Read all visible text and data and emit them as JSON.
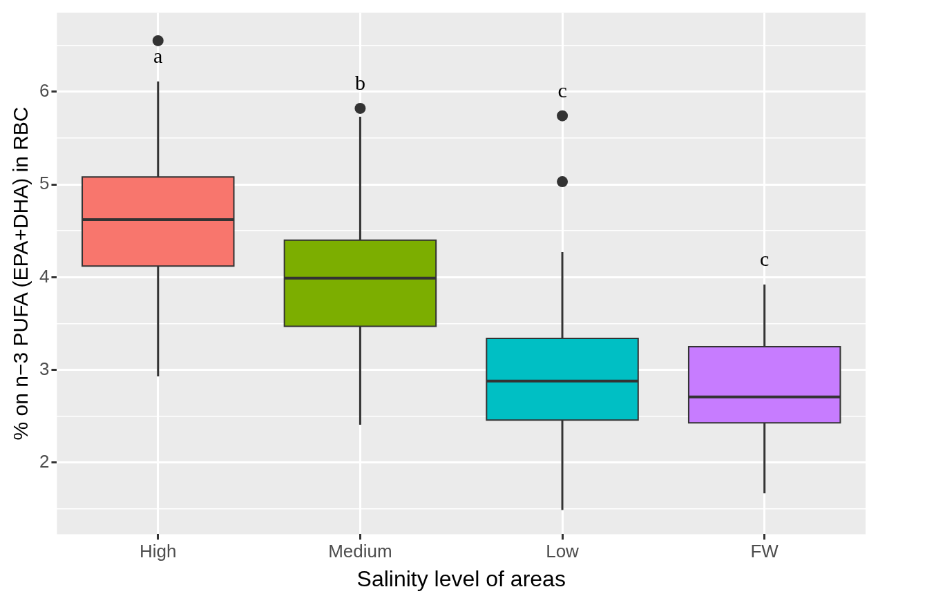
{
  "chart_data": {
    "type": "box",
    "xlabel": "Salinity level of areas",
    "ylabel": "% on n−3 PUFA (EPA+DHA) in RBC",
    "categories": [
      "High",
      "Medium",
      "Low",
      "FW"
    ],
    "colors": [
      "#f8766d",
      "#7cae00",
      "#00bfc4",
      "#c77cff"
    ],
    "boxes": [
      {
        "low": 2.93,
        "q1": 4.12,
        "median": 4.62,
        "q3": 5.08,
        "high": 6.11,
        "outliers": [
          6.55
        ]
      },
      {
        "low": 2.41,
        "q1": 3.47,
        "median": 3.99,
        "q3": 4.4,
        "high": 5.73,
        "outliers": [
          5.82
        ]
      },
      {
        "low": 1.49,
        "q1": 2.46,
        "median": 2.88,
        "q3": 3.34,
        "high": 4.27,
        "outliers": [
          5.74,
          5.03
        ]
      },
      {
        "low": 1.67,
        "q1": 2.43,
        "median": 2.71,
        "q3": 3.25,
        "high": 3.92
      }
    ],
    "ylim": [
      1.23,
      6.85
    ],
    "yticks": [
      {
        "value": 1.5,
        "label": null
      },
      2,
      {
        "value": 2.5,
        "label": null
      },
      3,
      {
        "value": 3.5,
        "label": null
      },
      4,
      {
        "value": 4.5,
        "label": null
      },
      5,
      {
        "value": 5.5,
        "label": null
      },
      6,
      {
        "value": 6.5,
        "label": null
      }
    ],
    "grid": true,
    "annotations": [
      "a",
      "b",
      "c",
      "c"
    ]
  }
}
